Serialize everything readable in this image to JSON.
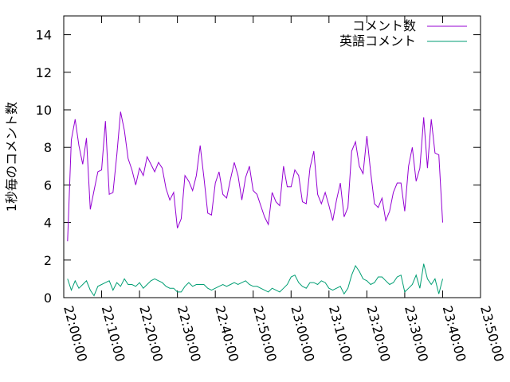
{
  "chart_data": {
    "type": "line",
    "title": "",
    "xlabel": "",
    "ylabel": "1秒毎のコメント数",
    "x_ticks": [
      "22:00:00",
      "22:10:00",
      "22:20:00",
      "22:30:00",
      "22:40:00",
      "22:50:00",
      "23:00:00",
      "23:10:00",
      "23:20:00",
      "23:30:00",
      "23:40:00",
      "23:50:00"
    ],
    "xlim": [
      "22:00:00",
      "23:50:00"
    ],
    "ylim": [
      0,
      15
    ],
    "y_ticks": [
      0,
      2,
      4,
      6,
      8,
      10,
      12,
      14
    ],
    "grid": false,
    "legend": "top-right",
    "x_start": "22:00:00",
    "sample_interval_seconds": 60,
    "series": [
      {
        "name": "コメント数",
        "color": "#9400d3",
        "x_offset_minutes": 1,
        "values": [
          3.0,
          8.4,
          9.5,
          8.1,
          7.1,
          8.5,
          4.7,
          5.7,
          6.7,
          6.8,
          9.4,
          5.5,
          5.6,
          7.6,
          9.9,
          8.9,
          7.4,
          6.8,
          6.0,
          6.9,
          6.5,
          7.5,
          7.1,
          6.7,
          7.2,
          6.9,
          5.8,
          5.2,
          5.6,
          3.7,
          4.2,
          6.5,
          6.2,
          5.7,
          6.5,
          8.1,
          6.4,
          4.5,
          4.4,
          6.1,
          6.7,
          5.5,
          5.3,
          6.3,
          7.2,
          6.5,
          5.2,
          6.4,
          7.0,
          5.7,
          5.5,
          4.9,
          4.3,
          3.9,
          5.6,
          5.1,
          4.9,
          7.0,
          5.9,
          5.9,
          6.8,
          6.5,
          5.1,
          5.0,
          6.9,
          7.8,
          5.5,
          5.0,
          5.6,
          4.9,
          4.1,
          5.2,
          6.1,
          4.3,
          4.8,
          7.8,
          8.3,
          7.0,
          6.6,
          8.6,
          6.7,
          5.0,
          4.8,
          5.3,
          4.1,
          4.6,
          5.6,
          6.1,
          6.1,
          4.6,
          7.0,
          8.0,
          6.2,
          6.9,
          9.6,
          6.9,
          9.5,
          7.7,
          7.6,
          4.0
        ]
      },
      {
        "name": "英語コメント",
        "color": "#009e73",
        "x_offset_minutes": 1,
        "values": [
          1.0,
          0.4,
          0.9,
          0.5,
          0.7,
          0.9,
          0.4,
          0.1,
          0.6,
          0.7,
          0.8,
          0.9,
          0.4,
          0.8,
          0.6,
          1.0,
          0.7,
          0.7,
          0.6,
          0.8,
          0.5,
          0.7,
          0.9,
          1.0,
          0.9,
          0.8,
          0.6,
          0.5,
          0.5,
          0.3,
          0.3,
          0.6,
          0.8,
          0.6,
          0.7,
          0.7,
          0.7,
          0.5,
          0.4,
          0.5,
          0.6,
          0.7,
          0.6,
          0.7,
          0.8,
          0.7,
          0.8,
          0.9,
          0.7,
          0.6,
          0.6,
          0.5,
          0.4,
          0.3,
          0.5,
          0.4,
          0.3,
          0.5,
          0.7,
          1.1,
          1.2,
          0.8,
          0.6,
          0.5,
          0.8,
          0.8,
          0.7,
          0.9,
          0.8,
          0.5,
          0.4,
          0.5,
          0.6,
          0.2,
          0.5,
          1.2,
          1.7,
          1.4,
          1.0,
          0.9,
          0.7,
          0.8,
          1.1,
          1.1,
          0.9,
          0.7,
          0.8,
          1.1,
          1.2,
          0.3,
          0.5,
          0.7,
          1.2,
          0.5,
          1.8,
          1.0,
          0.7,
          1.0,
          0.2,
          1.0
        ]
      }
    ]
  }
}
